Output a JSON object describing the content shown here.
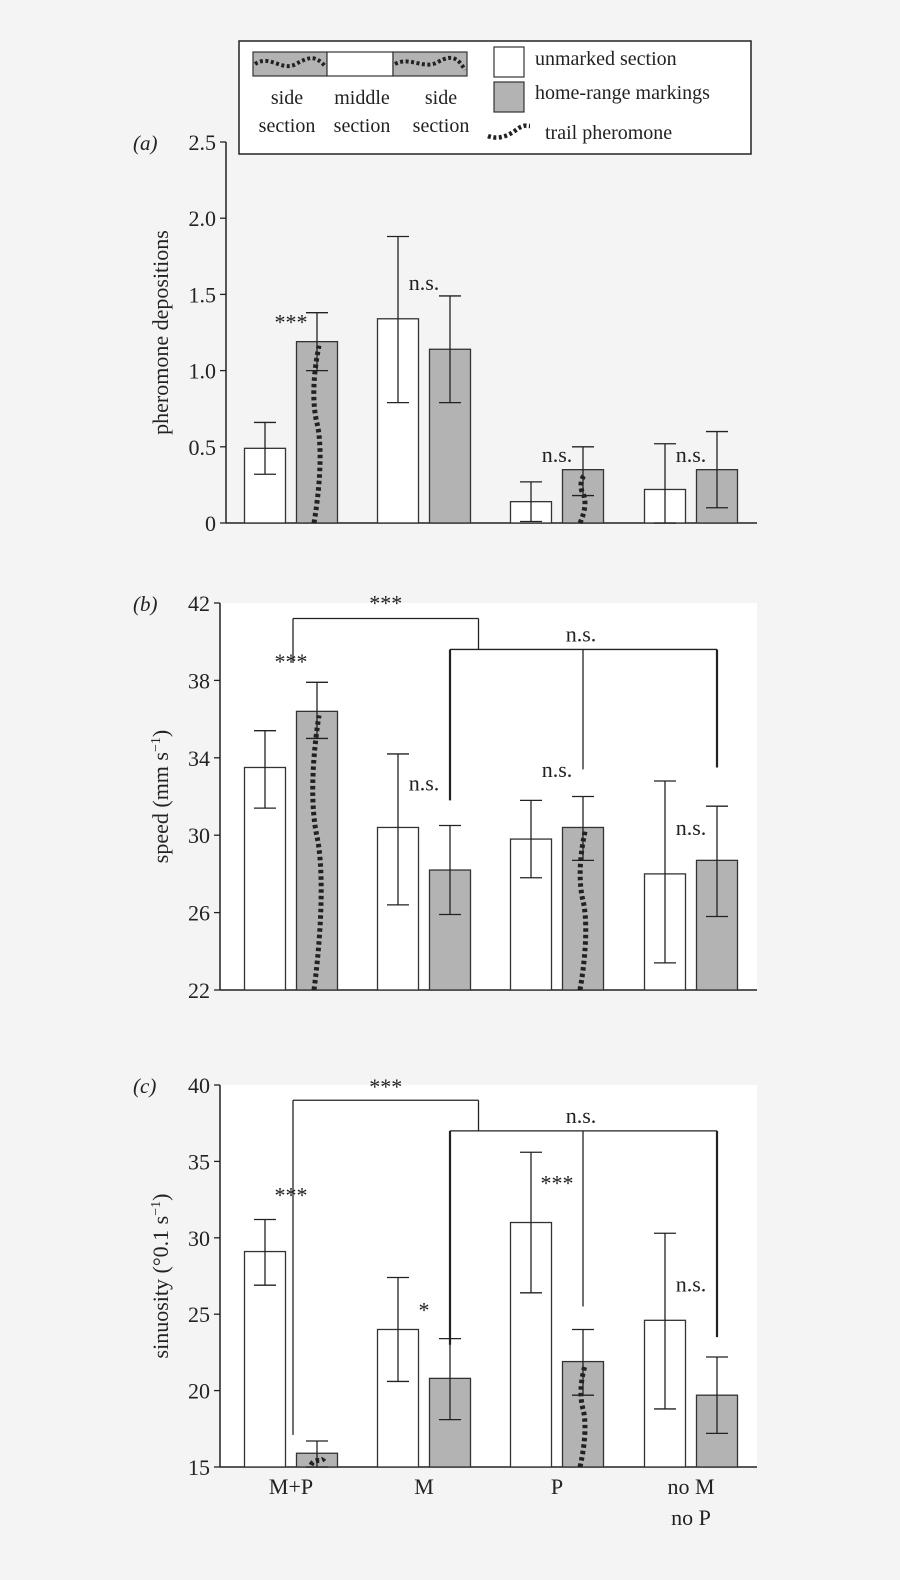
{
  "legend": {
    "side_label_1": "side",
    "side_label_2": "section",
    "middle_label_1": "middle",
    "middle_label_2": "section",
    "unmarked": "unmarked section",
    "homerange": "home-range markings",
    "trail": "trail pheromone"
  },
  "colors": {
    "unmarked": "#ffffff",
    "homerange": "#b3b3b3",
    "outline": "#333333",
    "trail": "#222222",
    "background": "#f4f4f4"
  },
  "chart_data": [
    {
      "panel_label": "(a)",
      "type": "bar",
      "ylabel": "pheromone depositions",
      "ylim": [
        0,
        2.5
      ],
      "yticks": [
        "0",
        "0.5",
        "1.0",
        "1.5",
        "2.0",
        "2.5"
      ],
      "categories": [
        "M+P",
        "M",
        "P",
        "no M no P"
      ],
      "series": [
        {
          "name": "unmarked section",
          "values": [
            0.49,
            1.34,
            0.14,
            0.22
          ],
          "err_low": [
            0.32,
            0.79,
            0.01,
            0.0
          ],
          "err_high": [
            0.66,
            1.88,
            0.27,
            0.52
          ]
        },
        {
          "name": "home-range markings",
          "values": [
            1.19,
            1.14,
            0.35,
            0.35
          ],
          "err_low": [
            1.0,
            0.79,
            0.18,
            0.1
          ],
          "err_high": [
            1.38,
            1.49,
            0.5,
            0.6
          ]
        }
      ],
      "trail_on": [
        true,
        false,
        true,
        false
      ],
      "annotations": [
        {
          "text": "***",
          "x": 0,
          "y": 1.27
        },
        {
          "text": "n.s.",
          "x": 1,
          "y": 1.53
        },
        {
          "text": "n.s.",
          "x": 2,
          "y": 0.4
        },
        {
          "text": "n.s.",
          "x": 3,
          "y": 0.4
        }
      ],
      "brackets": []
    },
    {
      "panel_label": "(b)",
      "type": "bar",
      "ylabel": "speed (mm s",
      "ylabel_sup": "−1",
      "ylabel_end": ")",
      "ylim": [
        22,
        42
      ],
      "yticks": [
        "22",
        "26",
        "30",
        "34",
        "38",
        "42"
      ],
      "categories": [
        "M+P",
        "M",
        "P",
        "no M no P"
      ],
      "series": [
        {
          "name": "unmarked section",
          "values": [
            33.5,
            30.4,
            29.8,
            28.0
          ],
          "err_low": [
            31.4,
            26.4,
            27.8,
            23.4
          ],
          "err_high": [
            35.4,
            34.2,
            31.8,
            32.8
          ]
        },
        {
          "name": "home-range markings",
          "values": [
            36.4,
            28.2,
            30.4,
            28.7
          ],
          "err_low": [
            35.0,
            25.9,
            28.7,
            25.8
          ],
          "err_high": [
            37.9,
            30.5,
            32.0,
            31.5
          ]
        }
      ],
      "trail_on": [
        true,
        false,
        true,
        false
      ],
      "annotations": [
        {
          "text": "***",
          "x": 0,
          "y": 38.6
        },
        {
          "text": "n.s.",
          "x": 1,
          "y": 32.3
        },
        {
          "text": "n.s.",
          "x": 2,
          "y": 33.0
        },
        {
          "text": "n.s.",
          "x": 3,
          "y": 30.0
        }
      ],
      "brackets": [
        {
          "label": "***",
          "drops": [
            {
              "cat": 0,
              "to": 38.9
            }
          ],
          "join": 1.5,
          "level": 41.2,
          "label_y": 41.6
        },
        {
          "label": "n.s.",
          "drops": [
            {
              "cat": 1,
              "to": 31.8
            },
            {
              "cat": 2,
              "to": 33.4
            },
            {
              "cat": 3,
              "to": 33.5
            }
          ],
          "level": 39.6,
          "label_y": 40.0,
          "up_to": 41.2
        }
      ]
    },
    {
      "panel_label": "(c)",
      "type": "bar",
      "ylabel": "sinuosity (°0.1 s",
      "ylabel_sup": "−1",
      "ylabel_end": ")",
      "ylim": [
        15,
        40
      ],
      "yticks": [
        "15",
        "20",
        "25",
        "30",
        "35",
        "40"
      ],
      "categories": [
        "M+P",
        "M",
        "P",
        "no M\nno P"
      ],
      "series": [
        {
          "name": "unmarked section",
          "values": [
            29.1,
            24.0,
            31.0,
            24.6
          ],
          "err_low": [
            26.9,
            20.6,
            26.4,
            18.8
          ],
          "err_high": [
            31.2,
            27.4,
            35.6,
            30.3
          ]
        },
        {
          "name": "home-range markings",
          "values": [
            15.9,
            20.8,
            21.9,
            19.7
          ],
          "err_low": [
            15.0,
            18.1,
            19.7,
            17.2
          ],
          "err_high": [
            16.7,
            23.4,
            24.0,
            22.2
          ]
        }
      ],
      "trail_on": [
        true,
        false,
        true,
        false
      ],
      "annotations": [
        {
          "text": "***",
          "x": 0,
          "y": 32.3
        },
        {
          "text": "*",
          "x": 1,
          "y": 24.8
        },
        {
          "text": "***",
          "x": 2,
          "y": 33.1
        },
        {
          "text": "n.s.",
          "x": 3,
          "y": 26.5
        }
      ],
      "brackets": [
        {
          "label": "***",
          "drops": [
            {
              "cat": 0,
              "to": 17.1
            }
          ],
          "join": 1.5,
          "level": 39.0,
          "label_y": 39.4
        },
        {
          "label": "n.s.",
          "drops": [
            {
              "cat": 1,
              "to": 23.0
            },
            {
              "cat": 2,
              "to": 25.5
            },
            {
              "cat": 3,
              "to": 23.5
            }
          ],
          "level": 37.0,
          "label_y": 37.5,
          "up_to": 39.0
        }
      ]
    }
  ]
}
